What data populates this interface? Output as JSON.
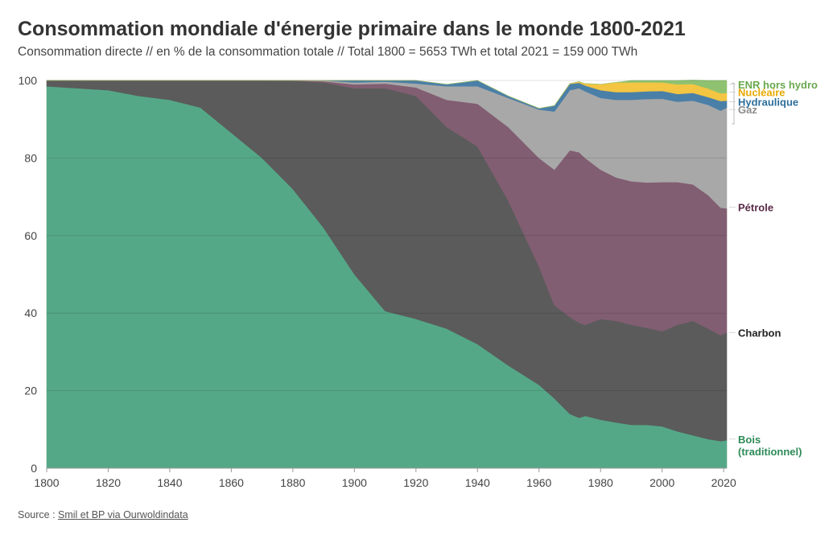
{
  "header": {
    "title": "Consommation mondiale d'énergie primaire dans le monde 1800-2021",
    "subtitle": "Consommation directe // en % de la consommation totale // Total 1800 = 5653 TWh et total 2021 = 159 000 TWh"
  },
  "footer": {
    "source_prefix": "Source : ",
    "source_link": "Smil et BP via Ourwoldindata"
  },
  "chart_data": {
    "type": "area",
    "stacked": true,
    "x": [
      1800,
      1820,
      1830,
      1840,
      1850,
      1860,
      1870,
      1880,
      1890,
      1900,
      1910,
      1920,
      1930,
      1940,
      1950,
      1960,
      1965,
      1970,
      1973,
      1975,
      1980,
      1985,
      1990,
      1995,
      2000,
      2005,
      2010,
      2015,
      2019,
      2021
    ],
    "series": [
      {
        "name": "Bois (traditionnel)",
        "color": "#55a887",
        "values": [
          98.5,
          97.5,
          96,
          95,
          93,
          86.5,
          80,
          72,
          62,
          50,
          40.5,
          38.5,
          36,
          32,
          26.5,
          21.5,
          18,
          14,
          13,
          13.5,
          12.5,
          11.8,
          11.2,
          11.2,
          10.8,
          9.5,
          8.5,
          7.5,
          7,
          7.2
        ]
      },
      {
        "name": "Charbon",
        "color": "#5b5b5b",
        "values": [
          1.5,
          2.5,
          4,
          5,
          7,
          13.5,
          20,
          27.9,
          37.5,
          48,
          57.5,
          57.5,
          52,
          51,
          42.5,
          30.5,
          24,
          25,
          24.5,
          23.5,
          26,
          26.2,
          25.8,
          25,
          24.5,
          27.5,
          29.5,
          28.5,
          27.3,
          27.8
        ]
      },
      {
        "name": "Pétrole",
        "color": "#825e72",
        "values": [
          0,
          0,
          0,
          0,
          0,
          0,
          0,
          0.1,
          0.3,
          1,
          1.2,
          2.2,
          7,
          11,
          19,
          28,
          35,
          43,
          44,
          43,
          38.5,
          37,
          37,
          37.5,
          38.5,
          36.8,
          35.2,
          34.4,
          32.9,
          32
        ]
      },
      {
        "name": "Gaz",
        "color": "#a8a8a8",
        "values": [
          0,
          0,
          0,
          0,
          0,
          0,
          0,
          0,
          0.2,
          0.5,
          0.5,
          1,
          3.5,
          4.5,
          7.5,
          12.5,
          15,
          15.5,
          16.5,
          17.2,
          18.5,
          20,
          21,
          21.5,
          21.5,
          20.7,
          21.6,
          23.3,
          25,
          26
        ]
      },
      {
        "name": "Hydraulique",
        "color": "#4a7fa8",
        "values": [
          0,
          0,
          0,
          0,
          0,
          0,
          0,
          0,
          0,
          0.5,
          0.3,
          0.8,
          0.5,
          1.5,
          0.5,
          0.3,
          1.5,
          1.6,
          1.4,
          1.5,
          2,
          2,
          2,
          2,
          2,
          2,
          2,
          2,
          2.5,
          1.8
        ]
      },
      {
        "name": "Nucléaire",
        "color": "#f3c543",
        "values": [
          0,
          0,
          0,
          0,
          0,
          0,
          0,
          0,
          0,
          0,
          0,
          0,
          0,
          0,
          0,
          0,
          0,
          0.1,
          0.3,
          0.5,
          1.5,
          2.5,
          2.5,
          2.3,
          2.2,
          2.5,
          2.3,
          2.2,
          2,
          2
        ]
      },
      {
        "name": "ENR hors hydro",
        "color": "#8fc270",
        "values": [
          0,
          0,
          0,
          0,
          0,
          0,
          0,
          0,
          0,
          0,
          0,
          0,
          0,
          0,
          0,
          0,
          0,
          0,
          0,
          0,
          0,
          0,
          0.5,
          0.5,
          0.5,
          1,
          1,
          2.1,
          3.3,
          3.2
        ]
      }
    ],
    "xlim": [
      1800,
      2021
    ],
    "ylim": [
      0,
      100
    ],
    "xticks": [
      "1800",
      "1820",
      "1840",
      "1860",
      "1880",
      "1900",
      "1920",
      "1940",
      "1960",
      "1980",
      "2000",
      "2020"
    ],
    "yticks": [
      "0",
      "20",
      "40",
      "60",
      "80",
      "100"
    ],
    "legend_placement": "right, direct labels at series ends",
    "labels": [
      {
        "lines": [
          "ENR hors hydro"
        ],
        "color": "#6aa84f",
        "y": 99
      },
      {
        "lines": [
          "Nucléaire"
        ],
        "color": "#e8a900",
        "y": 97
      },
      {
        "lines": [
          "Hydraulique"
        ],
        "color": "#2d6f9b",
        "y": 94.5
      },
      {
        "lines": [
          "Gaz"
        ],
        "color": "#8a8a8a",
        "y": 92.5
      },
      {
        "lines": [
          "Pétrole"
        ],
        "color": "#5a2b48",
        "y": 67.3
      },
      {
        "lines": [
          "Charbon"
        ],
        "color": "#222222",
        "y": 35
      },
      {
        "lines": [
          "Bois",
          "(traditionnel)"
        ],
        "color": "#2e8b57",
        "y": 7.5
      }
    ]
  }
}
